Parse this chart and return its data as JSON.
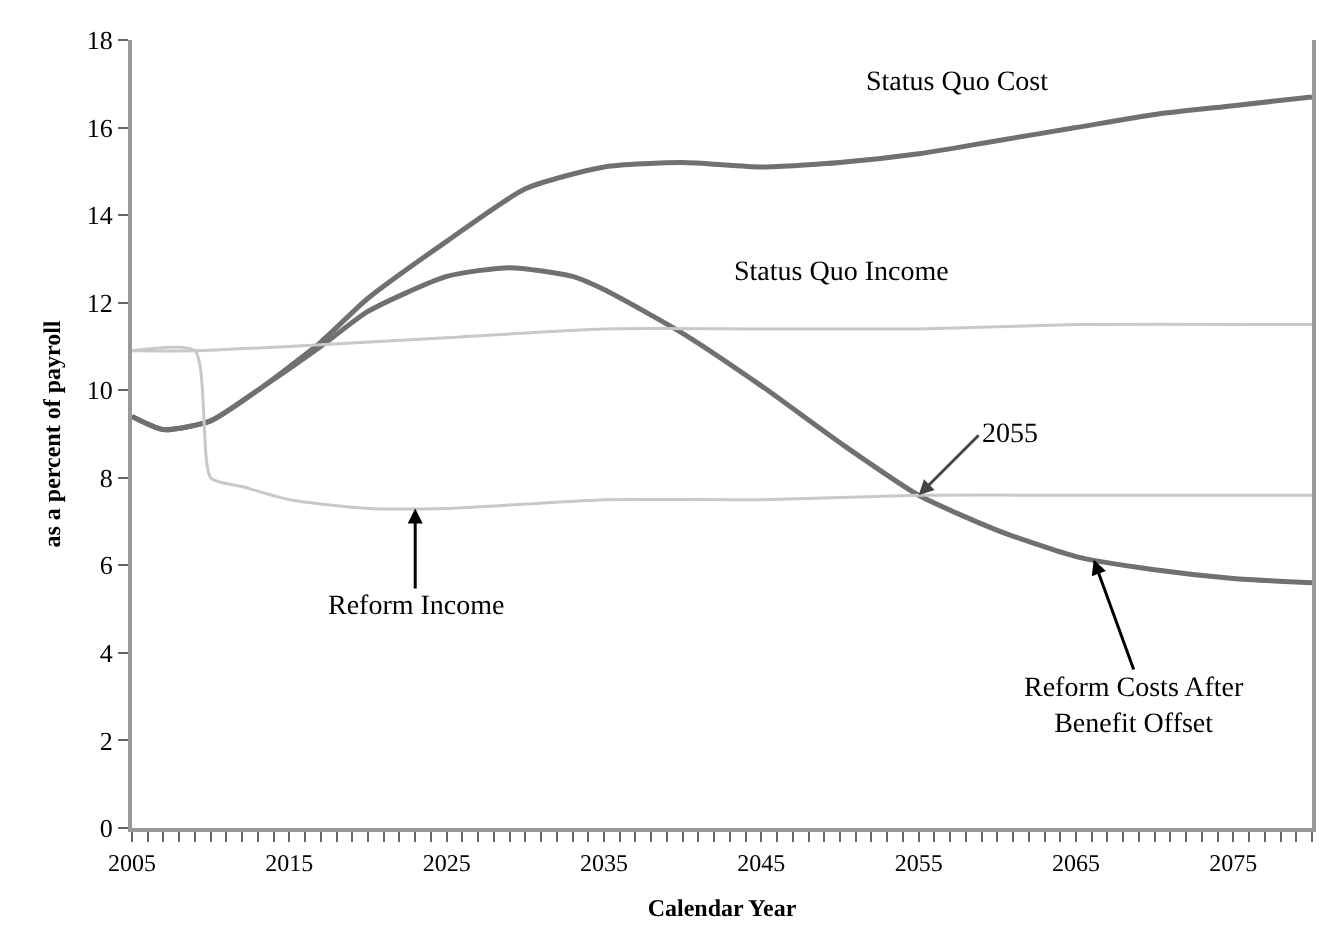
{
  "chart_data": {
    "type": "line",
    "xlabel": "Calendar Year",
    "ylabel": "as a percent of payroll",
    "xlim": [
      2005,
      2080
    ],
    "xticks": [
      2005,
      2015,
      2025,
      2035,
      2045,
      2055,
      2065,
      2075
    ],
    "ylim": [
      0,
      18
    ],
    "yticks": [
      0,
      2,
      4,
      6,
      8,
      10,
      12,
      14,
      16,
      18
    ],
    "grid": false,
    "legend": false,
    "marker": "none",
    "line_style": "solid",
    "annotations": [
      {
        "text": "2055",
        "x": 2055,
        "y": 7.6
      }
    ],
    "series": [
      {
        "name": "Status Quo Cost",
        "color": "#707070",
        "x": [
          2005,
          2007,
          2010,
          2013,
          2017,
          2020,
          2025,
          2030,
          2035,
          2040,
          2045,
          2050,
          2055,
          2060,
          2065,
          2070,
          2075,
          2080
        ],
        "values": [
          9.4,
          9.1,
          9.3,
          10.0,
          11.1,
          12.1,
          13.4,
          14.6,
          15.1,
          15.2,
          15.1,
          15.2,
          15.4,
          15.7,
          16.0,
          16.3,
          16.5,
          16.7
        ]
      },
      {
        "name": "Reform Costs After Benefit Offset",
        "color": "#707070",
        "x": [
          2005,
          2007,
          2010,
          2013,
          2017,
          2020,
          2025,
          2029,
          2033,
          2035,
          2040,
          2045,
          2050,
          2055,
          2060,
          2065,
          2070,
          2075,
          2080
        ],
        "values": [
          9.4,
          9.1,
          9.3,
          10.0,
          11.0,
          11.8,
          12.6,
          12.8,
          12.6,
          12.3,
          11.3,
          10.1,
          8.8,
          7.6,
          6.8,
          6.2,
          5.9,
          5.7,
          5.6
        ]
      },
      {
        "name": "Status Quo Income",
        "color": "#c8c8c8",
        "x": [
          2005,
          2009,
          2015,
          2025,
          2035,
          2045,
          2055,
          2065,
          2080
        ],
        "values": [
          10.9,
          10.9,
          11.0,
          11.2,
          11.4,
          11.4,
          11.4,
          11.5,
          11.5
        ]
      },
      {
        "name": "Reform Income",
        "color": "#c8c8c8",
        "x": [
          2005,
          2009,
          2010,
          2012,
          2015,
          2020,
          2025,
          2030,
          2035,
          2045,
          2055,
          2065,
          2080
        ],
        "values": [
          10.9,
          10.9,
          8.0,
          7.8,
          7.5,
          7.3,
          7.3,
          7.4,
          7.5,
          7.5,
          7.6,
          7.6,
          7.6
        ]
      }
    ]
  }
}
